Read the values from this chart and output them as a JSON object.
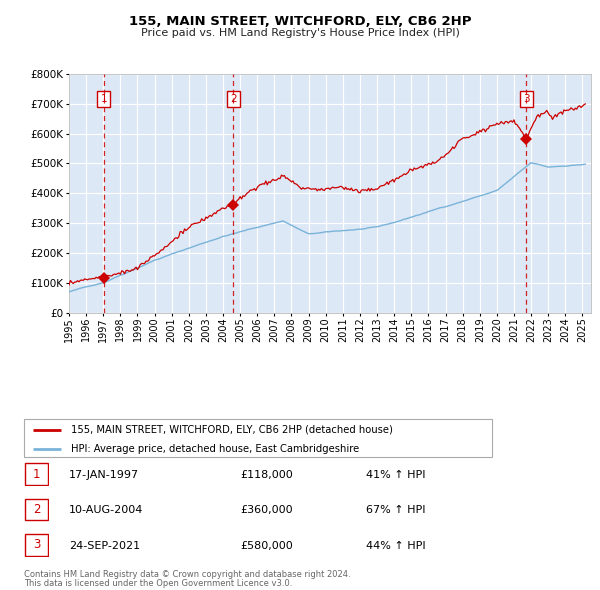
{
  "title": "155, MAIN STREET, WITCHFORD, ELY, CB6 2HP",
  "subtitle": "Price paid vs. HM Land Registry's House Price Index (HPI)",
  "legend_line1": "155, MAIN STREET, WITCHFORD, ELY, CB6 2HP (detached house)",
  "legend_line2": "HPI: Average price, detached house, East Cambridgeshire",
  "footer_line1": "Contains HM Land Registry data © Crown copyright and database right 2024.",
  "footer_line2": "This data is licensed under the Open Government Licence v3.0.",
  "transactions": [
    {
      "num": 1,
      "date": "17-JAN-1997",
      "price": "£118,000",
      "pct": "41% ↑ HPI",
      "year": 1997.04,
      "price_val": 118000
    },
    {
      "num": 2,
      "date": "10-AUG-2004",
      "price": "£360,000",
      "pct": "67% ↑ HPI",
      "year": 2004.61,
      "price_val": 360000
    },
    {
      "num": 3,
      "date": "24-SEP-2021",
      "price": "£580,000",
      "pct": "44% ↑ HPI",
      "year": 2021.73,
      "price_val": 580000
    }
  ],
  "hpi_color": "#7ab3d9",
  "price_color": "#cc0000",
  "dashed_line_color": "#cc0000",
  "plot_bg_color": "#dce8f5",
  "ylim": [
    0,
    800000
  ],
  "yticks": [
    0,
    100000,
    200000,
    300000,
    400000,
    500000,
    600000,
    700000,
    800000
  ],
  "xlim_start": 1995.0,
  "xlim_end": 2025.5,
  "xticks": [
    1995,
    1996,
    1997,
    1998,
    1999,
    2000,
    2001,
    2002,
    2003,
    2004,
    2005,
    2006,
    2007,
    2008,
    2009,
    2010,
    2011,
    2012,
    2013,
    2014,
    2015,
    2016,
    2017,
    2018,
    2019,
    2020,
    2021,
    2022,
    2023,
    2024,
    2025
  ]
}
